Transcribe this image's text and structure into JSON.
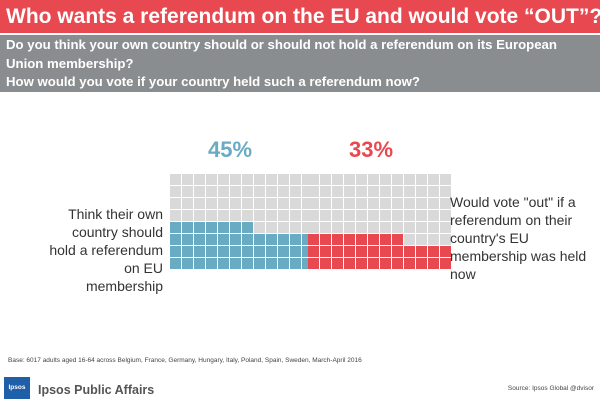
{
  "header": {
    "title": "Who wants a referendum on the EU and would vote “OUT”?",
    "question_line1": "Do you think your own country should or should not hold a referendum on its European",
    "question_line2": "Union membership?",
    "question_line3": "How would you vote if your country held such a referendum now?"
  },
  "chart_data": {
    "type": "waffle",
    "grid": {
      "cols": 12,
      "rows": 8,
      "total_cells": 96
    },
    "series": [
      {
        "name": "Think their own country should hold a referendum on EU membership",
        "value": 45,
        "label": "45%",
        "color": "#6aabc4",
        "description": "Think their own country should  hold a referendum on  EU membership"
      },
      {
        "name": "Would vote \"out\" if a referendum on their country's EU membership was held now",
        "value": 33,
        "label": "33%",
        "color": "#e8484f",
        "description": "Would vote \"out\"  if a referendum on their country's EU membership was held now"
      }
    ],
    "empty_color": "#d9d9d9"
  },
  "footer": {
    "base_note": "Base: 6017 adults aged 16-64 across Belgium, France, Germany, Hungary, Italy, Poland, Spain, Sweden, March-April 2016",
    "logo_mark": "Ipsos",
    "logo_text": "Ipsos Public Affairs",
    "source": "Source: Ipsos Global @dvisor"
  }
}
